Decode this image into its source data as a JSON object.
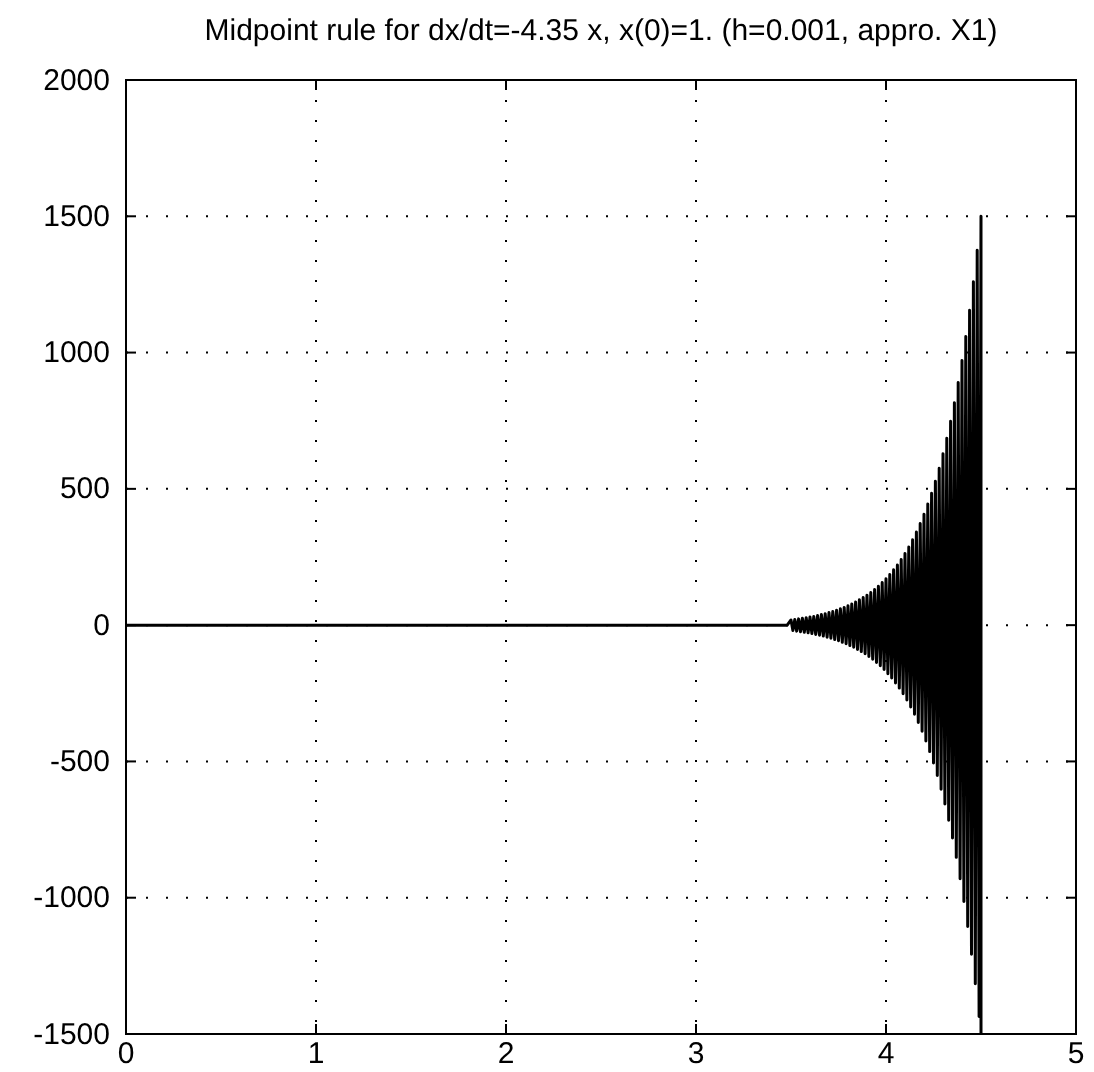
{
  "chart_data": {
    "type": "line",
    "title": "Midpoint rule for dx/dt=-4.35 x, x(0)=1. (h=0.001, appro. X1)",
    "series": [
      {
        "color": "#000000",
        "x": [
          0,
          1.4,
          2.85,
          3.2,
          3.48,
          3.5,
          3.51,
          3.52,
          3.53,
          3.54,
          3.55,
          3.56,
          3.57,
          3.58,
          3.59,
          3.6,
          3.61,
          3.62,
          3.63,
          3.64,
          3.65,
          3.66,
          3.67,
          3.68,
          3.69,
          3.7,
          3.71,
          3.72,
          3.73,
          3.74,
          3.75,
          3.76,
          3.77,
          3.78,
          3.79,
          3.8,
          3.81,
          3.82,
          3.83,
          3.84,
          3.85,
          3.86,
          3.87,
          3.88,
          3.89,
          3.9,
          3.91,
          3.92,
          3.93,
          3.94,
          3.95,
          3.96,
          3.97,
          3.98,
          3.99,
          4.0,
          4.01,
          4.02,
          4.03,
          4.04,
          4.05,
          4.06,
          4.07,
          4.08,
          4.09,
          4.1,
          4.11,
          4.12,
          4.13,
          4.14,
          4.15,
          4.16,
          4.17,
          4.18,
          4.19,
          4.2,
          4.21,
          4.22,
          4.23,
          4.24,
          4.25,
          4.26,
          4.27,
          4.28,
          4.29,
          4.3,
          4.31,
          4.32,
          4.33,
          4.34,
          4.35,
          4.36,
          4.37,
          4.38,
          4.39,
          4.4,
          4.41,
          4.42,
          4.43,
          4.44,
          4.45,
          4.46,
          4.47,
          4.48,
          4.49,
          4.5,
          4.5
        ],
        "values": [
          0,
          0,
          0,
          0,
          0,
          19,
          -20,
          21,
          -22,
          23,
          -24,
          25,
          -26,
          27,
          -28,
          30,
          -31,
          32,
          -34,
          35,
          -37,
          39,
          -40,
          42,
          -44,
          46,
          -48,
          50,
          -53,
          55,
          -57,
          60,
          -63,
          65,
          -68,
          71,
          -75,
          78,
          -81,
          85,
          -89,
          93,
          -97,
          101,
          -105,
          110,
          -115,
          120,
          -125,
          131,
          -137,
          143,
          -149,
          156,
          -163,
          170,
          -178,
          186,
          -194,
          203,
          -212,
          221,
          -231,
          241,
          -252,
          263,
          -275,
          287,
          -300,
          313,
          -327,
          342,
          -357,
          373,
          -389,
          407,
          -425,
          444,
          -464,
          484,
          -506,
          528,
          -552,
          576,
          -602,
          629,
          -656,
          686,
          -716,
          748,
          -781,
          816,
          -852,
          890,
          -930,
          971,
          -1014,
          1059,
          -1106,
          1155,
          -1207,
          1260,
          -1316,
          1375,
          -1436,
          1500,
          -1500
        ]
      }
    ],
    "xlim": [
      0,
      5
    ],
    "xticks": [
      0,
      1,
      2,
      3,
      4,
      5
    ],
    "ylim": [
      -1500,
      2000
    ],
    "yticks": [
      -1500,
      -1000,
      -500,
      0,
      500,
      1000,
      1500,
      2000
    ],
    "grid": true,
    "line_style": "solid",
    "marker": "none"
  }
}
